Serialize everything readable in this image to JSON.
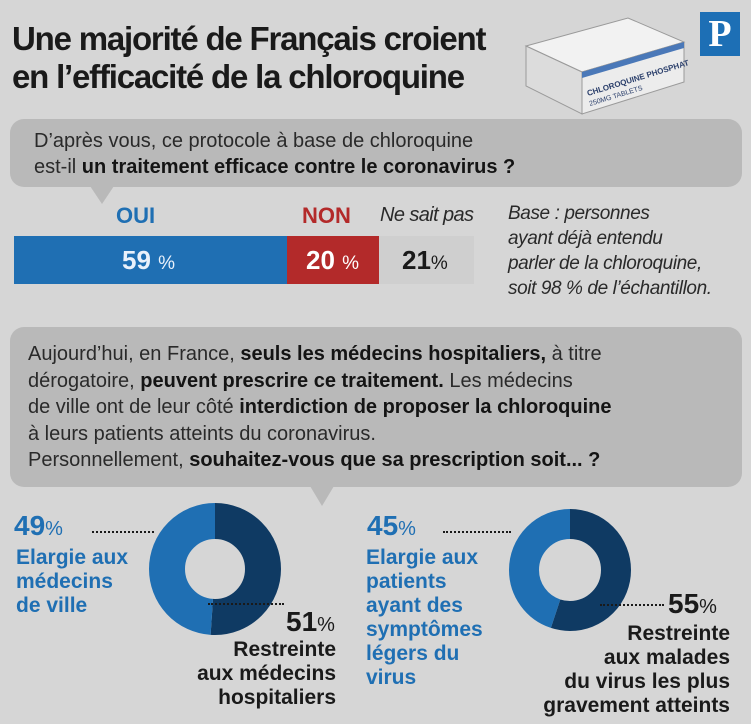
{
  "title": {
    "line1": "Une majorité de Français croient",
    "line2": "en l’efficacité de la chloroquine"
  },
  "logo": {
    "letter": "P"
  },
  "box": {
    "line1": "CHLOROQUINE PHOSPHATE",
    "line2": "250MG TABLETS"
  },
  "colors": {
    "oui": "#1f6fb3",
    "non": "#b32a2a",
    "nsp": "#cfcfcf",
    "restreinte": "#0f3a63",
    "bubble": "#b9b9b9"
  },
  "question1": {
    "line1": "D’après vous, ce protocole à base de chloroquine",
    "line2_plain": "est-il ",
    "line2_bold": "un traitement efficace contre le coronavirus ?"
  },
  "base_note": [
    "Base : personnes",
    "ayant déjà entendu",
    "parler de la chloroquine,",
    "soit 98 % de l’échantillon."
  ],
  "question2": {
    "l1a": "Aujourd’hui, en France, ",
    "l1b": "seuls les médecins hospitaliers,",
    "l1c": " à titre",
    "l2a": "dérogatoire, ",
    "l2b": "peuvent prescrire ce traitement.",
    "l2c": " Les médecins",
    "l3a": "de ville ont de leur côté ",
    "l3b": "interdiction de proposer la chloroquine",
    "l4": "à leurs patients atteints du coronavirus.",
    "l5a": "Personnellement, ",
    "l5b": "souhaitez-vous que sa prescription soit... ?"
  },
  "chart_data": [
    {
      "type": "bar",
      "stacked": true,
      "title": "D’après vous, ce protocole à base de chloroquine est-il un traitement efficace contre le coronavirus ?",
      "categories": [
        "OUI",
        "NON",
        "Ne sait pas"
      ],
      "values": [
        59,
        20,
        21
      ],
      "value_labels": [
        "59",
        "20",
        "21"
      ],
      "unit": "%"
    },
    {
      "type": "pie",
      "donut": true,
      "categories": [
        "Elargie aux médecins de ville",
        "Restreinte aux médecins hospitaliers"
      ],
      "values": [
        49,
        51
      ],
      "value_labels": [
        "49",
        "51"
      ],
      "unit": "%",
      "labels": {
        "a": [
          "Elargie aux",
          "médecins",
          "de ville"
        ],
        "b": [
          "Restreinte",
          "aux médecins",
          "hospitaliers"
        ]
      }
    },
    {
      "type": "pie",
      "donut": true,
      "categories": [
        "Elargie aux patients ayant des symptômes légers du virus",
        "Restreinte aux malades du virus les plus gravement atteints"
      ],
      "values": [
        45,
        55
      ],
      "value_labels": [
        "45",
        "55"
      ],
      "unit": "%",
      "labels": {
        "a": [
          "Elargie aux",
          "patients",
          "ayant des",
          "symptômes",
          "légers du",
          "virus"
        ],
        "b": [
          "Restreinte",
          "aux malades",
          "du virus les plus",
          "gravement atteints"
        ]
      }
    }
  ]
}
